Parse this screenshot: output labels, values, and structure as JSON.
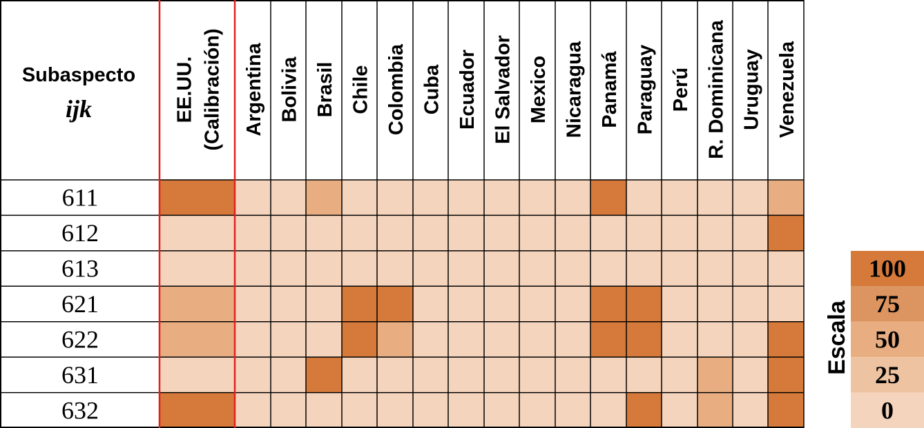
{
  "chart_data": {
    "type": "heatmap",
    "corner_label": "Subaspecto",
    "corner_sublabel": "ijk",
    "columns": [
      "EE.UU. (Calibración)",
      "Argentina",
      "Bolivia",
      "Brasil",
      "Chile",
      "Colombia",
      "Cuba",
      "Ecuador",
      "El Salvador",
      "Mexico",
      "Nicaragua",
      "Panamá",
      "Paraguay",
      "Perú",
      "R. Dominicana",
      "Uruguay",
      "Venezuela"
    ],
    "column_lines": [
      [
        "EE.UU.",
        "(Calibración)"
      ],
      [
        "Argentina"
      ],
      [
        "Bolivia"
      ],
      [
        "Brasil"
      ],
      [
        "Chile"
      ],
      [
        "Colombia"
      ],
      [
        "Cuba"
      ],
      [
        "Ecuador"
      ],
      [
        "El Salvador"
      ],
      [
        "Mexico"
      ],
      [
        "Nicaragua"
      ],
      [
        "Panamá"
      ],
      [
        "Paraguay"
      ],
      [
        "Perú"
      ],
      [
        "R. Dominicana"
      ],
      [
        "Uruguay"
      ],
      [
        "Venezuela"
      ]
    ],
    "rows": [
      "611",
      "612",
      "613",
      "621",
      "622",
      "631",
      "632"
    ],
    "values": [
      [
        100,
        0,
        0,
        50,
        0,
        0,
        0,
        0,
        0,
        0,
        0,
        100,
        0,
        0,
        0,
        0,
        50
      ],
      [
        0,
        0,
        0,
        0,
        0,
        0,
        0,
        0,
        0,
        0,
        0,
        0,
        0,
        0,
        0,
        0,
        100
      ],
      [
        0,
        0,
        0,
        0,
        0,
        0,
        0,
        0,
        0,
        0,
        0,
        0,
        0,
        0,
        0,
        0,
        0
      ],
      [
        50,
        0,
        0,
        0,
        100,
        100,
        0,
        0,
        0,
        0,
        0,
        100,
        100,
        0,
        0,
        0,
        0
      ],
      [
        50,
        0,
        0,
        0,
        100,
        50,
        0,
        0,
        0,
        0,
        0,
        100,
        100,
        0,
        0,
        0,
        100
      ],
      [
        0,
        0,
        0,
        100,
        0,
        0,
        0,
        0,
        0,
        0,
        0,
        0,
        0,
        0,
        50,
        0,
        100
      ],
      [
        100,
        0,
        0,
        0,
        0,
        0,
        0,
        0,
        0,
        0,
        0,
        0,
        100,
        0,
        50,
        0,
        100
      ]
    ],
    "scale": {
      "title": "Escala",
      "levels": [
        {
          "label": "100",
          "value": 100,
          "color": "#D57A3A"
        },
        {
          "label": "75",
          "value": 75,
          "color": "#DC9460"
        },
        {
          "label": "50",
          "value": 50,
          "color": "#E8AE82"
        },
        {
          "label": "25",
          "value": 25,
          "color": "#EEC3A2"
        },
        {
          "label": "0",
          "value": 0,
          "color": "#F4D4BD"
        }
      ]
    },
    "colors": {
      "grid_line": "#000000",
      "calibration_border": "#E02020"
    }
  }
}
